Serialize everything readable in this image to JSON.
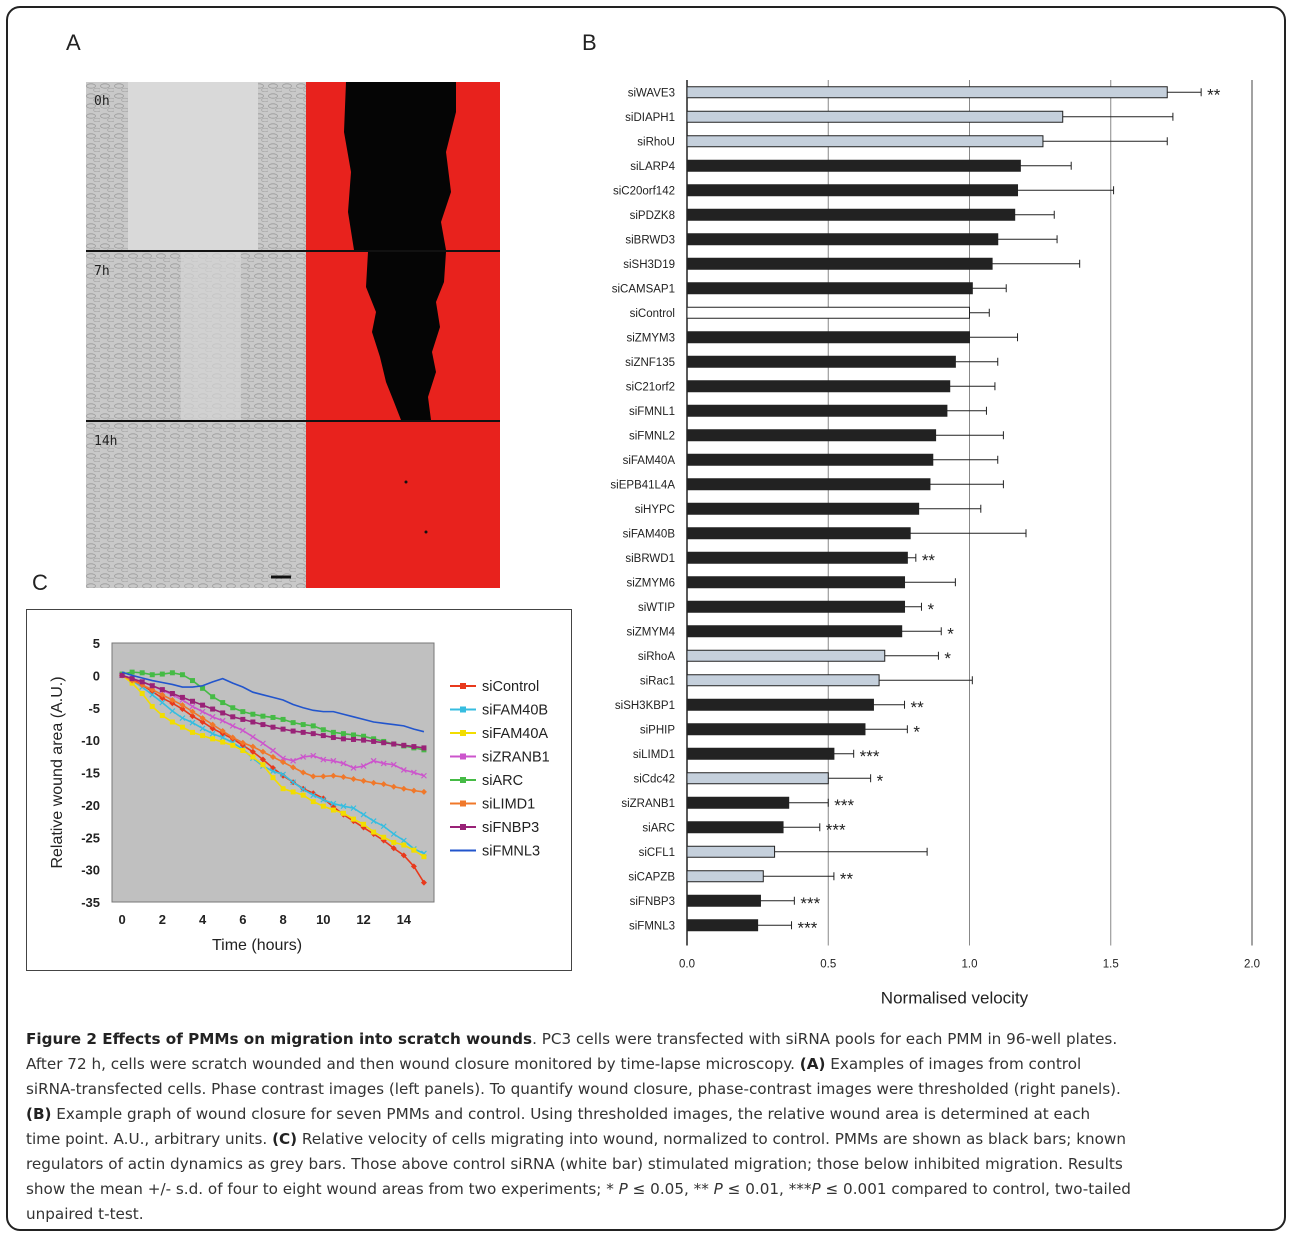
{
  "panels": {
    "a": "A",
    "b": "B",
    "c": "C"
  },
  "panel_a": {
    "timepoints": [
      "0h",
      "7h",
      "14h"
    ]
  },
  "chart_data": [
    {
      "type": "bar",
      "orientation": "horizontal",
      "xlabel": "Normalised velocity",
      "xlim": [
        0,
        2.0
      ],
      "xticks": [
        "0.0",
        "0.5",
        "1.0",
        "1.5",
        "2.0"
      ],
      "grid": true,
      "colors": {
        "pmm": "#222222",
        "actin_regulator": "#c5d0dc",
        "control": "#ffffff"
      },
      "categories": [
        "siWAVE3",
        "siDIAPH1",
        "siRhoU",
        "siLARP4",
        "siC20orf142",
        "siPDZK8",
        "siBRWD3",
        "siSH3D19",
        "siCAMSAP1",
        "siControl",
        "siZMYM3",
        "siZNF135",
        "siC21orf2",
        "siFMNL1",
        "siFMNL2",
        "siFAM40A",
        "siEPB41L4A",
        "siHYPC",
        "siFAM40B",
        "siBRWD1",
        "siZMYM6",
        "siWTIP",
        "siZMYM4",
        "siRhoA",
        "siRac1",
        "siSH3KBP1",
        "siPHIP",
        "siLIMD1",
        "siCdc42",
        "siZRANB1",
        "siARC",
        "siCFL1",
        "siCAPZB",
        "siFNBP3",
        "siFMNL3"
      ],
      "values": [
        1.7,
        1.33,
        1.26,
        1.18,
        1.17,
        1.16,
        1.1,
        1.08,
        1.01,
        1.0,
        1.0,
        0.95,
        0.93,
        0.92,
        0.88,
        0.87,
        0.86,
        0.82,
        0.79,
        0.78,
        0.77,
        0.77,
        0.76,
        0.7,
        0.68,
        0.66,
        0.63,
        0.52,
        0.5,
        0.36,
        0.34,
        0.31,
        0.27,
        0.26,
        0.25
      ],
      "errors": [
        0.12,
        0.39,
        0.44,
        0.18,
        0.34,
        0.14,
        0.21,
        0.31,
        0.12,
        0.07,
        0.17,
        0.15,
        0.16,
        0.14,
        0.24,
        0.23,
        0.26,
        0.22,
        0.41,
        0.03,
        0.18,
        0.06,
        0.14,
        0.19,
        0.33,
        0.11,
        0.15,
        0.07,
        0.15,
        0.14,
        0.13,
        0.54,
        0.25,
        0.12,
        0.12
      ],
      "bar_type": [
        "grey",
        "grey",
        "grey",
        "black",
        "black",
        "black",
        "black",
        "black",
        "black",
        "white",
        "black",
        "black",
        "black",
        "black",
        "black",
        "black",
        "black",
        "black",
        "black",
        "black",
        "black",
        "black",
        "black",
        "grey",
        "grey",
        "black",
        "black",
        "black",
        "grey",
        "black",
        "black",
        "grey",
        "grey",
        "black",
        "black"
      ],
      "significance": [
        "**",
        "",
        "",
        "",
        "",
        "",
        "",
        "",
        "",
        "",
        "",
        "",
        "",
        "",
        "",
        "",
        "",
        "",
        "",
        "**",
        "",
        "*",
        "*",
        "*",
        "",
        "**",
        "*",
        "***",
        "*",
        "***",
        "***",
        "",
        "**",
        "***",
        "***"
      ]
    },
    {
      "type": "line",
      "xlabel": "Time (hours)",
      "ylabel": "Relative wound area (A.U.)",
      "xlim": [
        -0.5,
        15.5
      ],
      "ylim": [
        -35,
        5
      ],
      "xticks": [
        0,
        2,
        4,
        6,
        8,
        10,
        12,
        14
      ],
      "yticks": [
        5,
        0,
        -5,
        -10,
        -15,
        -20,
        -25,
        -30,
        -35
      ],
      "grid": false,
      "legend": "right",
      "x": [
        0,
        0.5,
        1,
        1.5,
        2,
        2.5,
        3,
        3.5,
        4,
        4.5,
        5,
        5.5,
        6,
        6.5,
        7,
        7.5,
        8,
        8.5,
        9,
        9.5,
        10,
        10.5,
        11,
        11.5,
        12,
        12.5,
        13,
        13.5,
        14,
        14.5,
        15
      ],
      "series": [
        {
          "name": "siControl",
          "color": "#e8391c",
          "marker": "diamond",
          "values": [
            0,
            -0.5,
            -1.5,
            -2.5,
            -3.5,
            -4.3,
            -5.2,
            -6.3,
            -7.2,
            -8.2,
            -9,
            -9.8,
            -10.8,
            -11.8,
            -13,
            -14.3,
            -15.5,
            -16.5,
            -17.5,
            -18.2,
            -19,
            -20.3,
            -21.5,
            -22.5,
            -23.5,
            -24.5,
            -25.5,
            -26.7,
            -27.8,
            -29.5,
            -32
          ]
        },
        {
          "name": "siFAM40B",
          "color": "#36bde0",
          "marker": "cross",
          "values": [
            0,
            -0.8,
            -1.8,
            -3,
            -4.2,
            -5.5,
            -6.6,
            -7.3,
            -8.2,
            -9,
            -9.6,
            -10.4,
            -11.4,
            -12.8,
            -14,
            -14.8,
            -15.3,
            -16.5,
            -17.6,
            -18.5,
            -19.2,
            -19.8,
            -20.2,
            -20.5,
            -21.5,
            -22.5,
            -23.3,
            -24.5,
            -25.5,
            -26.8,
            -27.5
          ]
        },
        {
          "name": "siFAM40A",
          "color": "#f2dd00",
          "marker": "square",
          "values": [
            0,
            -1.2,
            -2.8,
            -4.8,
            -6.2,
            -7.2,
            -8,
            -8.8,
            -9.3,
            -9.8,
            -10.3,
            -10.8,
            -11.6,
            -12.6,
            -13.8,
            -15.8,
            -17.5,
            -18,
            -18.5,
            -19.5,
            -20.2,
            -20.8,
            -21.3,
            -22.2,
            -23,
            -24.2,
            -25,
            -25.8,
            -26.2,
            -27,
            -28
          ]
        },
        {
          "name": "siZRANB1",
          "color": "#cc55cc",
          "marker": "x",
          "values": [
            0,
            -0.5,
            -1,
            -1.6,
            -2.3,
            -3,
            -3.8,
            -4.8,
            -5.6,
            -6.4,
            -7,
            -7.8,
            -8.5,
            -9.5,
            -10.5,
            -11.6,
            -12.8,
            -13.2,
            -12.6,
            -12.4,
            -13,
            -13.2,
            -13.6,
            -14.3,
            -14,
            -13.2,
            -13.6,
            -13.8,
            -14.6,
            -15,
            -15.5
          ]
        },
        {
          "name": "siARC",
          "color": "#45bb45",
          "marker": "square",
          "values": [
            0.2,
            0.5,
            0.4,
            0.1,
            0.2,
            0.4,
            0.1,
            -0.8,
            -2,
            -3.3,
            -4.2,
            -5,
            -5.6,
            -6,
            -6.3,
            -6.5,
            -6.8,
            -7.3,
            -7.6,
            -7.8,
            -8.4,
            -8.8,
            -9,
            -9.2,
            -9.4,
            -9.8,
            -10.2,
            -10.6,
            -10.9,
            -11.2,
            -11.5
          ]
        },
        {
          "name": "siLIMD1",
          "color": "#f0782a",
          "marker": "diamond",
          "values": [
            0,
            -0.8,
            -1.5,
            -2.2,
            -3,
            -3.8,
            -4.6,
            -5.6,
            -6.6,
            -7.6,
            -8.6,
            -9.6,
            -10.4,
            -11,
            -11.8,
            -12.6,
            -13.4,
            -14.2,
            -15,
            -15.6,
            -15.6,
            -15.5,
            -15.7,
            -16,
            -16.3,
            -16.6,
            -16.8,
            -17.2,
            -17.5,
            -17.8,
            -18
          ]
        },
        {
          "name": "siFNBP3",
          "color": "#992277",
          "marker": "square",
          "values": [
            0,
            -0.5,
            -1,
            -1.6,
            -2.2,
            -2.8,
            -3.4,
            -4,
            -4.6,
            -5.2,
            -5.8,
            -6.4,
            -6.8,
            -7.2,
            -7.6,
            -8,
            -8.3,
            -8.6,
            -8.8,
            -9,
            -9.3,
            -9.6,
            -9.8,
            -9.9,
            -10,
            -10.2,
            -10.4,
            -10.6,
            -10.8,
            -11,
            -11.2
          ]
        },
        {
          "name": "siFMNL3",
          "color": "#2255cc",
          "marker": "none",
          "values": [
            0.5,
            0,
            -0.4,
            -0.8,
            -1.1,
            -1.4,
            -1.8,
            -1.8,
            -1.6,
            -1,
            -0.5,
            -1.2,
            -1.8,
            -2.6,
            -3,
            -3.4,
            -3.8,
            -4.5,
            -5,
            -5.4,
            -5.6,
            -5.6,
            -6,
            -6.4,
            -6.8,
            -7.2,
            -7.4,
            -7.6,
            -7.8,
            -8.3,
            -8.7
          ]
        }
      ]
    }
  ],
  "caption": {
    "line1_bold": "Figure 2 Effects of PMMs on migration into scratch wounds",
    "line1_rest": ". PC3 cells were transfected with siRNA pools for each PMM in 96-well plates.",
    "line2": "After 72 h, cells were scratch wounded and then wound closure monitored by time-lapse microscopy.",
    "label_a": "(A)",
    "line3": "Examples of images from control",
    "line4": "siRNA-transfected cells. Phase contrast images (left panels). To quantify wound closure, phase-contrast images were thresholded (right panels).",
    "label_b": "(B)",
    "line5": "Example graph of wound closure for seven PMMs and control. Using thresholded images, the relative wound area is determined at each",
    "line6_pre": "time point. A.U., arbitrary units.",
    "label_c": "(C)",
    "line6_post": "Relative velocity of cells migrating into wound, normalized to control. PMMs are shown as black bars; known",
    "line7": "regulators of actin dynamics as grey bars. Those above control siRNA (white bar) stimulated migration; those below inhibited migration. Results",
    "line8_a": "show the mean +/- s.d. of four to eight wound areas from two experiments; *",
    "p_sym": "P",
    "line8_b": "≤ 0.05, **",
    "line8_c": "≤ 0.01, ***",
    "line8_d": "≤ 0.001 compared to control, two-tailed",
    "line9": "unpaired t-test."
  }
}
